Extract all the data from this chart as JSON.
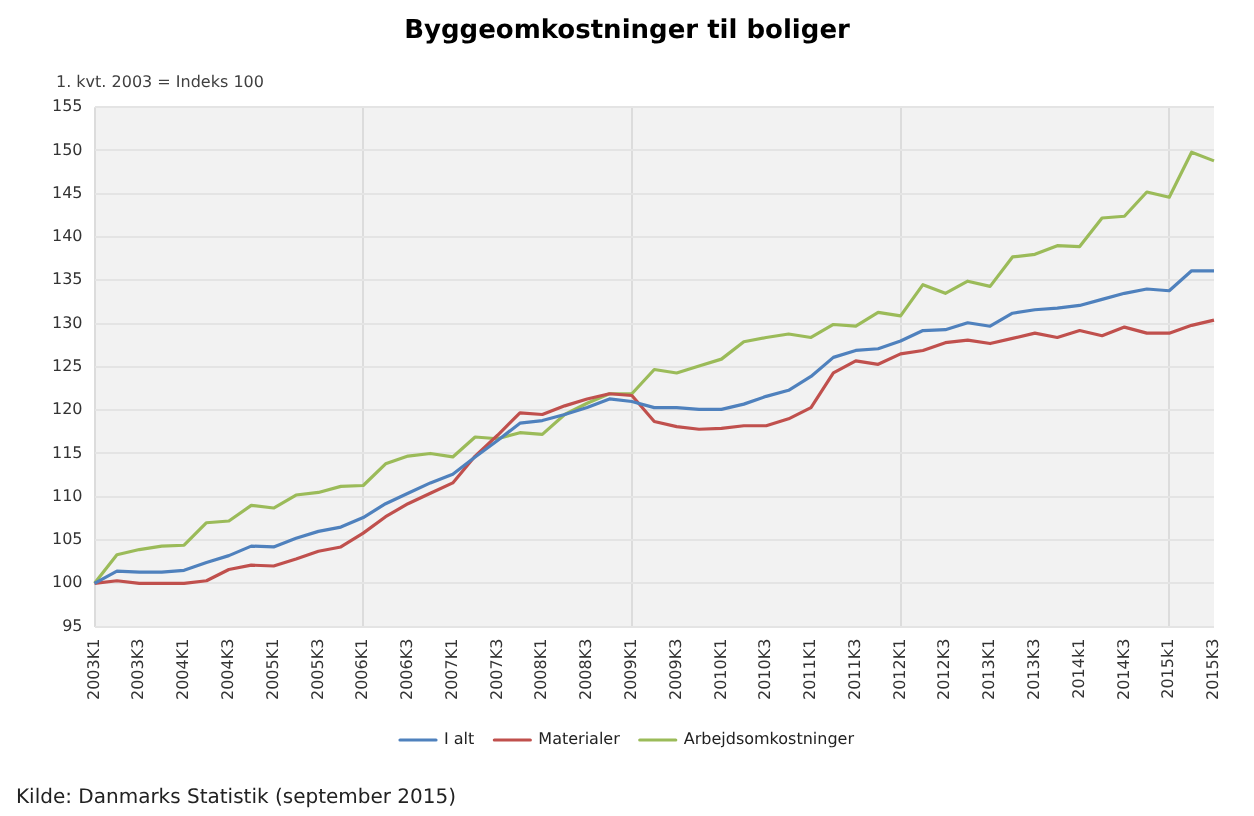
{
  "chart_data": {
    "type": "line",
    "title": "Byggeomkostninger til boliger",
    "ylabel": "1. kvt. 2003 = Indeks 100",
    "categories": [
      "2003K1",
      null,
      "2003K3",
      null,
      "2004K1",
      null,
      "2004K3",
      null,
      "2005K1",
      null,
      "2005K3",
      null,
      "2006K1",
      null,
      "2006K3",
      null,
      "2007K1",
      null,
      "2007K3",
      null,
      "2008K1",
      null,
      "2008K3",
      null,
      "2009K1",
      null,
      "2009K3",
      null,
      "2010K1",
      null,
      "2010K3",
      null,
      "2011K1",
      null,
      "2011K3",
      null,
      "2012K1",
      null,
      "2012K3",
      null,
      "2013K1",
      null,
      "2013K3",
      null,
      "2014k1",
      null,
      "2014K3",
      null,
      "2015k1",
      null,
      "2015K3"
    ],
    "series": [
      {
        "name": "I alt",
        "color": "#4f81bd",
        "values": [
          100,
          101.4,
          101.3,
          101.3,
          101.5,
          102.4,
          103.2,
          104.3,
          104.2,
          105.2,
          106,
          106.5,
          107.6,
          109.2,
          110.4,
          111.6,
          112.6,
          114.6,
          116.5,
          118.5,
          118.8,
          119.5,
          120.3,
          121.3,
          121,
          120.3,
          120.3,
          120.1,
          120.1,
          120.7,
          121.6,
          122.3,
          123.9,
          126.1,
          126.9,
          127.1,
          128,
          129.2,
          129.3,
          130.1,
          129.7,
          131.2,
          131.6,
          131.8,
          132.1,
          132.8,
          133.5,
          134,
          133.8,
          136.1,
          136.1
        ]
      },
      {
        "name": "Materialer",
        "color": "#c0504d",
        "values": [
          100,
          100.3,
          100,
          100,
          100,
          100.3,
          101.6,
          102.1,
          102,
          102.8,
          103.7,
          104.2,
          105.8,
          107.7,
          109.2,
          110.4,
          111.6,
          114.7,
          117.1,
          119.7,
          119.5,
          120.5,
          121.3,
          121.9,
          121.7,
          118.7,
          118.1,
          117.8,
          117.9,
          118.2,
          118.2,
          119,
          120.3,
          124.3,
          125.7,
          125.3,
          126.5,
          126.9,
          127.8,
          128.1,
          127.7,
          128.3,
          128.9,
          128.4,
          129.2,
          128.6,
          129.6,
          128.9,
          128.9,
          129.8,
          130.4
        ]
      },
      {
        "name": "Arbejdsomkostninger",
        "color": "#9bbb59",
        "values": [
          100,
          103.3,
          103.9,
          104.3,
          104.4,
          107,
          107.2,
          109,
          108.7,
          110.2,
          110.5,
          111.2,
          111.3,
          113.8,
          114.7,
          115,
          114.6,
          116.9,
          116.7,
          117.4,
          117.2,
          119.5,
          120.8,
          121.9,
          121.9,
          124.7,
          124.3,
          125.1,
          125.9,
          127.9,
          128.4,
          128.8,
          128.4,
          129.9,
          129.7,
          131.3,
          130.9,
          134.5,
          133.5,
          134.9,
          134.3,
          137.7,
          138,
          139,
          138.9,
          142.2,
          142.4,
          145.2,
          144.6,
          149.8,
          148.8
        ]
      }
    ],
    "ylim": [
      95,
      155
    ],
    "yticks": [
      95,
      100,
      105,
      110,
      115,
      120,
      125,
      130,
      135,
      140,
      145,
      150,
      155
    ],
    "grid": true,
    "legend": "bottom",
    "marker": "none",
    "line_style": "solid",
    "annotations": [
      "Kilde: Danmarks Statistik (september 2015)"
    ]
  }
}
